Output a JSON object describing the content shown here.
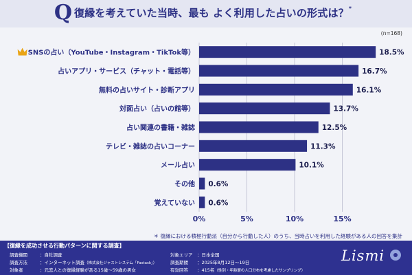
{
  "header": {
    "q_letter": "Q",
    "title": "復縁を考えていた当時、最も よく利用した占いの形式は？",
    "asterisk": "*"
  },
  "n_label": "(n=168)",
  "colors": {
    "bar": "#2d3185",
    "header_bg": "#e4e6f2",
    "footer_bg": "#2e3190",
    "crown": "#e9a416",
    "text": "#2d3185"
  },
  "chart_data": {
    "type": "bar",
    "orientation": "horizontal",
    "categories": [
      "SNSの占い（YouTube・Instagram・TikTok等）",
      "占いアプリ・サービス（チャット・電話等）",
      "無料の占いサイト・診断アプリ",
      "対面占い（占いの館等）",
      "占い関連の書籍・雑誌",
      "テレビ・雑誌の占いコーナー",
      "メール占い",
      "その他",
      "覚えていない"
    ],
    "values": [
      18.5,
      16.7,
      16.1,
      13.7,
      12.5,
      11.3,
      10.1,
      0.6,
      0.6
    ],
    "value_labels": [
      "18.5%",
      "16.7%",
      "16.1%",
      "13.7%",
      "12.5%",
      "11.3%",
      "10.1%",
      "0.6%",
      "0.6%"
    ],
    "xlim": [
      0,
      20
    ],
    "ticks": [
      0,
      5,
      10,
      15
    ],
    "tick_labels": [
      "0%",
      "5%",
      "10%",
      "15%"
    ],
    "grid": true,
    "highlight_first": "crown-icon"
  },
  "footnote": "＊ 復縁における積極行動派（自分から行動した人）のうち、当時占いを利用した経験がある人の回答を集計",
  "footer": {
    "survey_title": "【復縁を成功させる行動パターンに関する調査】",
    "rows_left": [
      {
        "label": "調査機関",
        "value": "：自社調査",
        "note": ""
      },
      {
        "label": "調査方法",
        "value": "：インターネット調査",
        "note": "（株式会社ジャストシステム「Fastask」）"
      },
      {
        "label": "対象者",
        "value": "：元恋人との復縁経験がある15歳～59歳の男女",
        "note": ""
      }
    ],
    "rows_right": [
      {
        "label": "対象エリア",
        "value": "：日本全国",
        "note": ""
      },
      {
        "label": "調査期間",
        "value": "：2025年8月12日～19日",
        "note": ""
      },
      {
        "label": "有効回答",
        "value": "：415名",
        "note": "（性別・年齢層の人口分布を考慮したサンプリング）"
      }
    ],
    "logo": "Lismi"
  }
}
